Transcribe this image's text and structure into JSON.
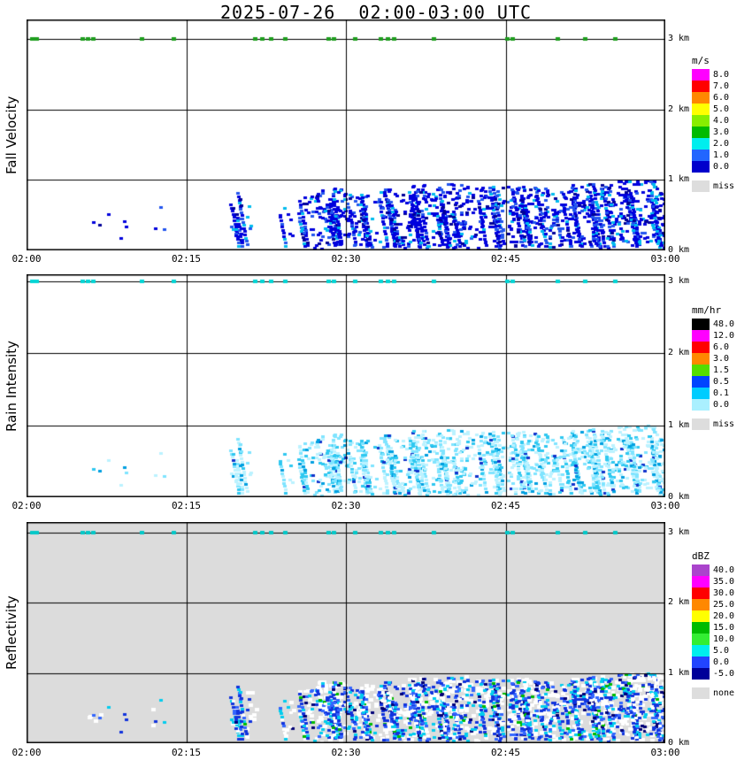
{
  "title": "2025-07-26  02:00-03:00 UTC",
  "chart_data": {
    "type": "heatmap",
    "x_ticks": [
      "02:00",
      "02:15",
      "02:30",
      "02:45",
      "03:00"
    ],
    "y_ticks": [
      "3 km",
      "2 km",
      "1 km",
      "0 km"
    ],
    "x_range_minutes": [
      0,
      60
    ],
    "y_range_km": [
      0,
      3.3
    ],
    "grid": "on",
    "panels": [
      {
        "id": "fall-velocity",
        "ylabel": "Fall Velocity",
        "background": "#FFFFFF",
        "mark_color": "#1E9E1E",
        "cell_palette": [
          [
            "#0000DD",
            0.58
          ],
          [
            "#2255EE",
            0.2
          ],
          [
            "#00BBEE",
            0.12
          ],
          [
            "#000099",
            0.1
          ]
        ],
        "colorbar": {
          "title": "m/s",
          "entries": [
            {
              "label": "8.0",
              "color": "#FF00FF"
            },
            {
              "label": "7.0",
              "color": "#FF0000"
            },
            {
              "label": "6.0",
              "color": "#FF8800"
            },
            {
              "label": "5.0",
              "color": "#FFFF00"
            },
            {
              "label": "4.0",
              "color": "#88EE00"
            },
            {
              "label": "3.0",
              "color": "#00BB00"
            },
            {
              "label": "2.0",
              "color": "#00EEEE"
            },
            {
              "label": "1.0",
              "color": "#2266FF"
            },
            {
              "label": "0.0",
              "color": "#0000CC"
            }
          ],
          "missing": {
            "label": "miss",
            "color": "#DDDDDD"
          }
        }
      },
      {
        "id": "rain-intensity",
        "ylabel": "Rain Intensity",
        "background": "#FFFFFF",
        "mark_color": "#00D5D5",
        "cell_palette": [
          [
            "#BBF2FF",
            0.42
          ],
          [
            "#7FE4FF",
            0.28
          ],
          [
            "#2FC8F0",
            0.18
          ],
          [
            "#009FE0",
            0.08
          ],
          [
            "#1133CC",
            0.04
          ]
        ],
        "colorbar": {
          "title": "mm/hr",
          "entries": [
            {
              "label": "48.0",
              "color": "#000000"
            },
            {
              "label": "12.0",
              "color": "#FF00FF"
            },
            {
              "label": "6.0",
              "color": "#FF0000"
            },
            {
              "label": "3.0",
              "color": "#FF8800"
            },
            {
              "label": "1.5",
              "color": "#55DD00"
            },
            {
              "label": "0.5",
              "color": "#0044FF"
            },
            {
              "label": "0.1",
              "color": "#00CCFF"
            },
            {
              "label": "0.0",
              "color": "#AAF0FF"
            }
          ],
          "missing": {
            "label": "miss",
            "color": "#DDDDDD"
          }
        }
      },
      {
        "id": "reflectivity",
        "ylabel": "Reflectivity",
        "background": "#DCDCDC",
        "mark_color": "#00C8C8",
        "halo_color": "#FFFFFF",
        "halo_density_scale": 0.6,
        "cell_palette": [
          [
            "#1133DD",
            0.34
          ],
          [
            "#3366FF",
            0.14
          ],
          [
            "#00CCEE",
            0.22
          ],
          [
            "#FFFFFF",
            0.2
          ],
          [
            "#000077",
            0.06
          ],
          [
            "#00BB00",
            0.04
          ]
        ],
        "colorbar": {
          "title": "dBZ",
          "entries": [
            {
              "label": "40.0",
              "color": "#AA44CC"
            },
            {
              "label": "35.0",
              "color": "#FF00FF"
            },
            {
              "label": "30.0",
              "color": "#FF0000"
            },
            {
              "label": "25.0",
              "color": "#FF8800"
            },
            {
              "label": "20.0",
              "color": "#FFFF00"
            },
            {
              "label": "15.0",
              "color": "#00BB00"
            },
            {
              "label": "10.0",
              "color": "#33EE33"
            },
            {
              "label": "5.0",
              "color": "#00EEEE"
            },
            {
              "label": "0.0",
              "color": "#2244FF"
            },
            {
              "label": "-5.0",
              "color": "#000099"
            }
          ],
          "missing": {
            "label": "none",
            "color": "#DDDDDD"
          }
        }
      }
    ],
    "echo_field": {
      "description": "Precipitation echoes below ~1 km from ~02:06 to 03:00, densest after 02:27; isolated detections along the 3 km level. Same spatial pattern in all three panels.",
      "top_marks_min": [
        0.5,
        0.9,
        5.2,
        5.7,
        6.2,
        10.8,
        13.8,
        21.4,
        22.1,
        22.9,
        24.3,
        28.3,
        28.8,
        30.8,
        33.2,
        33.9,
        34.5,
        38.2,
        45.1,
        45.6,
        49.9,
        52.4,
        55.3
      ],
      "clusters": [
        {
          "t0": 5.5,
          "t1": 9.6,
          "h0": 0.05,
          "h1": 0.5,
          "density": 0.05,
          "streaks": 0
        },
        {
          "t0": 11.8,
          "t1": 13.0,
          "h0": 0.1,
          "h1": 0.6,
          "density": 0.08,
          "streaks": 0
        },
        {
          "t0": 19.2,
          "t1": 21.6,
          "h0": 0,
          "h1": 0.8,
          "density": 0.14,
          "streaks": 3
        },
        {
          "t0": 23.8,
          "t1": 25.2,
          "h0": 0,
          "h1": 0.6,
          "density": 0.1,
          "streaks": 1
        },
        {
          "t0": 25.6,
          "t1": 27.2,
          "h0": 0,
          "h1": 0.75,
          "density": 0.25,
          "streaks": 2
        },
        {
          "t0": 27.2,
          "t1": 30.3,
          "h0": 0,
          "h1": 0.85,
          "density": 0.55,
          "streaks": 4
        },
        {
          "t0": 30.3,
          "t1": 33.0,
          "h0": 0,
          "h1": 0.8,
          "density": 0.3,
          "streaks": 4
        },
        {
          "t0": 33.0,
          "t1": 35.8,
          "h0": 0,
          "h1": 0.85,
          "density": 0.35,
          "streaks": 4
        },
        {
          "t0": 35.8,
          "t1": 38.5,
          "h0": 0,
          "h1": 0.9,
          "density": 0.5,
          "streaks": 4
        },
        {
          "t0": 38.5,
          "t1": 41.5,
          "h0": 0,
          "h1": 0.92,
          "density": 0.55,
          "streaks": 4
        },
        {
          "t0": 41.5,
          "t1": 44.9,
          "h0": 0,
          "h1": 0.88,
          "density": 0.35,
          "streaks": 4
        },
        {
          "t0": 45.2,
          "t1": 49.2,
          "h0": 0,
          "h1": 0.9,
          "density": 0.5,
          "streaks": 5
        },
        {
          "t0": 49.2,
          "t1": 52.5,
          "h0": 0,
          "h1": 0.9,
          "density": 0.4,
          "streaks": 4
        },
        {
          "t0": 52.5,
          "t1": 55.6,
          "h0": 0,
          "h1": 0.92,
          "density": 0.5,
          "streaks": 4
        },
        {
          "t0": 55.6,
          "t1": 60.0,
          "h0": 0,
          "h1": 0.97,
          "density": 0.6,
          "streaks": 5
        }
      ]
    }
  }
}
